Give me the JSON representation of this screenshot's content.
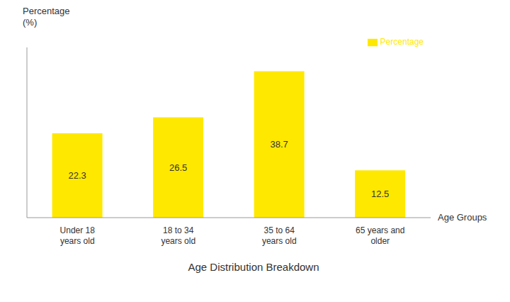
{
  "chart_data": {
    "type": "bar",
    "title": "Age Distribution Breakdown",
    "categories": [
      "Under 18\nyears old",
      "18 to 34\nyears old",
      "35 to 64\nyears old",
      "65 years and\nolder"
    ],
    "series": [
      {
        "name": "Percentage",
        "color": "#FFE800",
        "values": [
          22.3,
          26.5,
          38.7,
          12.5
        ]
      }
    ],
    "ylabel": "Percentage\n(%)",
    "xlabel": "Age Groups",
    "ylim": [
      0,
      45
    ],
    "tick_labels": "x",
    "grid": false,
    "legend": "upper right",
    "data_labels": true
  }
}
